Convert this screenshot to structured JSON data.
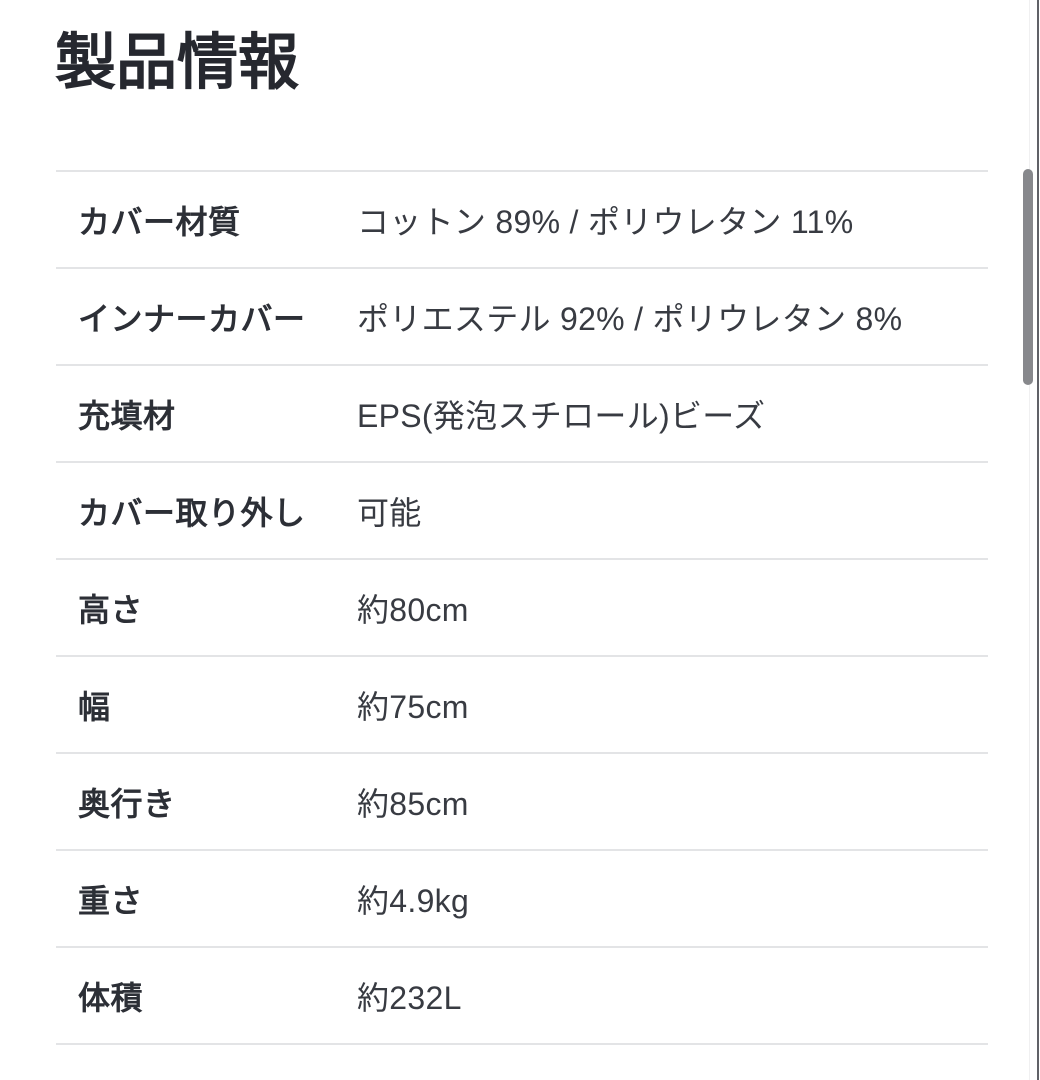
{
  "page": {
    "title": "製品情報"
  },
  "table": {
    "rows": [
      {
        "label": "カバー材質",
        "value": "コットン 89% / ポリウレタン 11%"
      },
      {
        "label": "インナーカバー",
        "value": "ポリエステル 92% / ポリウレタン 8%"
      },
      {
        "label": "充填材",
        "value": "EPS(発泡スチロール)ビーズ"
      },
      {
        "label": "カバー取り外し",
        "value": "可能"
      },
      {
        "label": "高さ",
        "value": "約80cm"
      },
      {
        "label": "幅",
        "value": "約75cm"
      },
      {
        "label": "奥行き",
        "value": "約85cm"
      },
      {
        "label": "重さ",
        "value": "約4.9kg"
      },
      {
        "label": "体積",
        "value": "約232L"
      }
    ]
  },
  "colors": {
    "bg": "#ffffff",
    "title-text": "#26282f",
    "label-text": "#2c2f36",
    "value-text": "#383b42",
    "divider": "#e3e4e6",
    "track-line": "#f0f0f1",
    "scrollbar-thumb": "#87888c",
    "edge-line": "#606167"
  }
}
